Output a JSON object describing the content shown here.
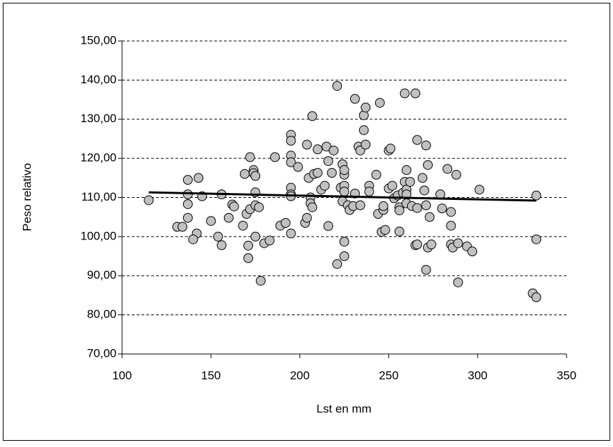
{
  "chart_data": {
    "type": "scatter",
    "x_label": "Lst en mm",
    "y_label": "Peso relativo",
    "xlim": [
      100,
      350
    ],
    "xticks": [
      100,
      150,
      200,
      250,
      300,
      350
    ],
    "ylim": [
      70,
      150
    ],
    "yticks": [
      {
        "value": 70,
        "label": "70,00"
      },
      {
        "value": 80,
        "label": "80,00"
      },
      {
        "value": 90,
        "label": "90,00"
      },
      {
        "value": 100,
        "label": "100,00"
      },
      {
        "value": 110,
        "label": "110,00"
      },
      {
        "value": 120,
        "label": "120,00"
      },
      {
        "value": 130,
        "label": "130,00"
      },
      {
        "value": 140,
        "label": "140,00"
      },
      {
        "value": 150,
        "label": "150,00"
      }
    ],
    "grid": true,
    "marker_color": "#c0c0c0",
    "x": [
      115,
      131,
      134,
      137,
      137,
      137,
      137,
      143,
      142,
      140,
      145,
      150,
      154,
      156,
      156,
      160,
      162,
      163,
      168,
      169,
      170,
      171,
      171,
      172,
      172,
      174,
      174,
      175,
      175,
      175,
      175,
      177,
      178,
      180,
      183,
      186,
      189,
      192,
      195,
      195,
      195,
      195,
      195,
      195,
      195,
      195,
      199,
      203,
      204,
      204,
      205,
      206,
      206,
      207,
      207,
      208,
      210,
      210,
      212,
      214,
      215,
      216,
      216,
      218,
      219,
      221,
      221,
      223,
      224,
      224,
      225,
      225,
      225,
      225,
      225,
      225,
      227,
      228,
      230,
      231,
      231,
      233,
      234,
      234,
      236,
      236,
      237,
      237,
      239,
      239,
      243,
      244,
      245,
      246,
      247,
      247,
      248,
      250,
      250,
      251,
      252,
      253,
      255,
      256,
      256,
      256,
      258,
      259,
      259,
      260,
      260,
      260,
      260,
      262,
      263,
      265,
      265,
      266,
      266,
      266,
      269,
      270,
      271,
      271,
      271,
      272,
      272,
      273,
      274,
      279,
      280,
      283,
      285,
      285,
      285,
      286,
      288,
      289,
      289,
      294,
      297,
      301,
      331,
      333,
      333,
      333
    ],
    "values": [
      109.3,
      102.5,
      102.5,
      114.5,
      110.8,
      108.3,
      104.8,
      115,
      100.8,
      99.3,
      110.3,
      104,
      100,
      97.8,
      110.8,
      104.8,
      108.2,
      107.7,
      102.8,
      116,
      105.8,
      94.5,
      97.7,
      107,
      120.3,
      117,
      116.2,
      115.5,
      111.3,
      108,
      100,
      107.5,
      88.7,
      98.3,
      99,
      120.3,
      102.8,
      103.5,
      126,
      124.5,
      120.7,
      119,
      112.5,
      110.8,
      110.3,
      100.8,
      117.8,
      103.5,
      104.8,
      123.5,
      115,
      110,
      108.5,
      107.5,
      130.8,
      116,
      116.3,
      122.3,
      112,
      113,
      123,
      119.3,
      102.7,
      116.3,
      122,
      93,
      138.5,
      112.5,
      109,
      118.5,
      113,
      115.8,
      117,
      111.5,
      98.7,
      95,
      108,
      106.8,
      107.8,
      111,
      135.2,
      123,
      122,
      108,
      131,
      127.2,
      133,
      123.5,
      113,
      111.5,
      115.8,
      105.8,
      134.2,
      101.2,
      106.8,
      107.8,
      101.7,
      112.3,
      122,
      122.5,
      113,
      109.8,
      110.5,
      107.5,
      106.7,
      101.3,
      111.2,
      136.6,
      114,
      117,
      112,
      110.8,
      108.5,
      114,
      107.8,
      136.6,
      97.8,
      98,
      124.7,
      107.3,
      115,
      111.8,
      108,
      91.5,
      123.3,
      118.3,
      97.2,
      105,
      98,
      110.8,
      107.2,
      117.3,
      106.3,
      102.8,
      98,
      97.2,
      115.8,
      88.3,
      98.3,
      97.5,
      96.2,
      112,
      85.5,
      84.5,
      99.3,
      110.5
    ],
    "trendline": {
      "color": "#000000",
      "x": [
        115,
        333
      ],
      "values": [
        111.3,
        109.2
      ]
    }
  }
}
